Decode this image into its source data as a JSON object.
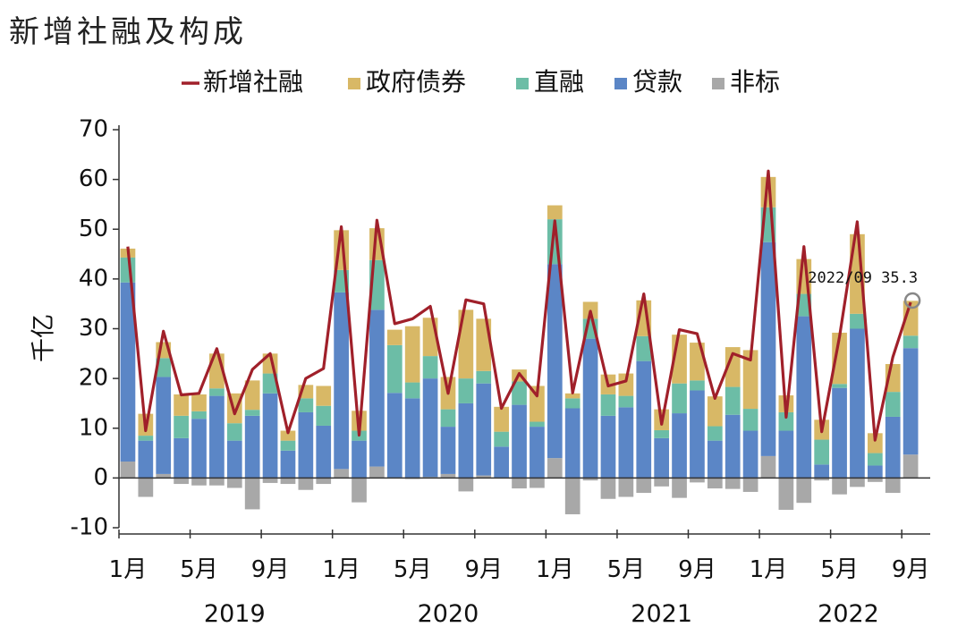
{
  "title": "新增社融及构成",
  "chart_data": {
    "type": "bar",
    "ylabel": "千亿",
    "ylim": [
      -10,
      70
    ],
    "yticks": [
      -10,
      0,
      10,
      20,
      30,
      40,
      50,
      60,
      70
    ],
    "x_tick_labels": [
      "1月",
      "5月",
      "9月",
      "1月",
      "5月",
      "9月",
      "1月",
      "5月",
      "9月",
      "1月",
      "5月",
      "9月"
    ],
    "x_tick_positions": [
      0,
      4,
      8,
      12,
      16,
      20,
      24,
      28,
      32,
      36,
      40,
      44
    ],
    "year_labels": [
      "2019",
      "2020",
      "2021",
      "2022"
    ],
    "year_positions": [
      6,
      18,
      30,
      40.5
    ],
    "colors": {
      "新增社融": "#a0202a",
      "政府债券": "#d8b866",
      "直融": "#6cbda6",
      "贷款": "#5b86c6",
      "非标": "#a8a8a8"
    },
    "annotation": {
      "text": "2022/09  35.3",
      "index": 44,
      "value": 35.3
    },
    "months": [
      "2019-01",
      "2019-02",
      "2019-03",
      "2019-04",
      "2019-05",
      "2019-06",
      "2019-07",
      "2019-08",
      "2019-09",
      "2019-10",
      "2019-11",
      "2019-12",
      "2020-01",
      "2020-02",
      "2020-03",
      "2020-04",
      "2020-05",
      "2020-06",
      "2020-07",
      "2020-08",
      "2020-09",
      "2020-10",
      "2020-11",
      "2020-12",
      "2021-01",
      "2021-02",
      "2021-03",
      "2021-04",
      "2021-05",
      "2021-06",
      "2021-07",
      "2021-08",
      "2021-09",
      "2021-10",
      "2021-11",
      "2021-12",
      "2022-01",
      "2022-02",
      "2022-03",
      "2022-04",
      "2022-05",
      "2022-06",
      "2022-07",
      "2022-08",
      "2022-09"
    ],
    "series": [
      {
        "name": "非标",
        "kind": "bar",
        "values": [
          3.3,
          -3.8,
          0.8,
          -1.2,
          -1.5,
          -1.5,
          -2.0,
          -6.3,
          -1.0,
          -1.2,
          -2.4,
          -1.2,
          1.8,
          -4.9,
          2.3,
          0.1,
          -0.2,
          0.2,
          0.8,
          -2.7,
          0.5,
          0.1,
          -2.1,
          -2.0,
          4.0,
          -7.3,
          -0.5,
          -4.2,
          -3.8,
          -3.0,
          -1.7,
          -4.0,
          -0.9,
          -2.1,
          -2.2,
          -2.8,
          4.4,
          -6.4,
          -5.0,
          -0.5,
          -3.3,
          -1.8,
          -0.8,
          -3.0,
          4.7
        ]
      },
      {
        "name": "贷款",
        "kind": "bar",
        "values": [
          36.0,
          7.5,
          19.5,
          8.0,
          11.9,
          16.5,
          7.5,
          12.5,
          17.0,
          5.5,
          13.2,
          10.5,
          35.5,
          7.5,
          31.5,
          17.0,
          16.0,
          19.8,
          9.5,
          15.0,
          18.5,
          6.2,
          14.7,
          10.3,
          39.0,
          14.0,
          28.0,
          12.5,
          14.2,
          23.5,
          8.0,
          13.0,
          17.6,
          7.5,
          12.7,
          9.5,
          43.0,
          9.5,
          32.5,
          2.7,
          18.1,
          30.0,
          2.5,
          12.3,
          21.4
        ]
      },
      {
        "name": "直融",
        "kind": "bar",
        "values": [
          5.0,
          1.0,
          3.8,
          4.5,
          1.5,
          1.5,
          3.5,
          1.2,
          4.0,
          2.0,
          2.8,
          4.0,
          4.5,
          2.0,
          10.0,
          9.6,
          3.2,
          4.5,
          3.5,
          5.0,
          2.5,
          3.0,
          4.7,
          1.0,
          9.0,
          2.0,
          4.0,
          4.3,
          2.3,
          5.0,
          1.6,
          6.0,
          2.0,
          2.9,
          5.6,
          4.4,
          7.0,
          3.7,
          4.5,
          5.0,
          0.8,
          3.0,
          2.5,
          5.0,
          2.5
        ]
      },
      {
        "name": "政府债券",
        "kind": "bar",
        "values": [
          1.8,
          4.4,
          3.2,
          4.3,
          3.4,
          7.0,
          6.0,
          5.9,
          4.0,
          2.0,
          2.7,
          4.0,
          8.0,
          4.0,
          6.4,
          3.1,
          11.3,
          7.7,
          6.5,
          13.8,
          10.5,
          5.0,
          2.4,
          7.2,
          2.8,
          1.0,
          3.4,
          4.0,
          4.5,
          7.2,
          4.2,
          9.8,
          7.6,
          6.0,
          8.0,
          11.8,
          6.1,
          3.4,
          7.0,
          4.0,
          10.3,
          16.0,
          4.0,
          5.6,
          7.0
        ]
      },
      {
        "name": "新增社融",
        "kind": "line",
        "values": [
          46.5,
          9.5,
          29.5,
          16.7,
          17.0,
          26.0,
          12.9,
          21.8,
          25.0,
          9.1,
          20.0,
          22.0,
          50.5,
          8.6,
          51.8,
          31.0,
          32.0,
          34.5,
          17.0,
          35.8,
          35.0,
          14.0,
          21.0,
          16.5,
          51.7,
          17.1,
          33.5,
          18.5,
          19.5,
          37.0,
          10.8,
          29.8,
          29.0,
          16.0,
          25.0,
          23.7,
          61.7,
          12.2,
          46.5,
          9.3,
          28.4,
          51.5,
          7.6,
          24.3,
          35.3
        ]
      }
    ]
  }
}
